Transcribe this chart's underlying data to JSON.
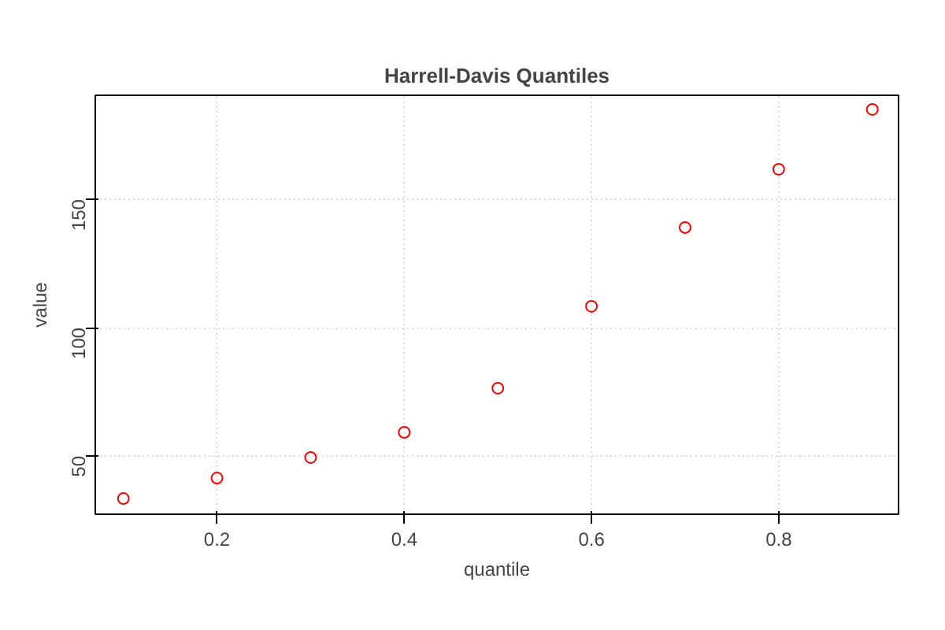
{
  "chart_data": {
    "type": "scatter",
    "title": "Harrell-Davis Quantiles",
    "xlabel": "quantile",
    "ylabel": "value",
    "x": [
      0.1,
      0.2,
      0.3,
      0.4,
      0.5,
      0.6,
      0.7,
      0.8,
      0.9
    ],
    "series": [
      {
        "color": "#ff0000",
        "values": [
          33.4,
          41.4,
          49.4,
          59.2,
          76.4,
          108.3,
          139,
          161.7,
          185
        ]
      }
    ],
    "xlim": [
      0.07,
      0.928
    ],
    "ylim": [
      27.3,
      190.5
    ],
    "xticks": [
      0.2,
      0.4,
      0.6,
      0.8
    ],
    "yticks": [
      50,
      100,
      150
    ],
    "grid": true,
    "marker": "circle"
  }
}
